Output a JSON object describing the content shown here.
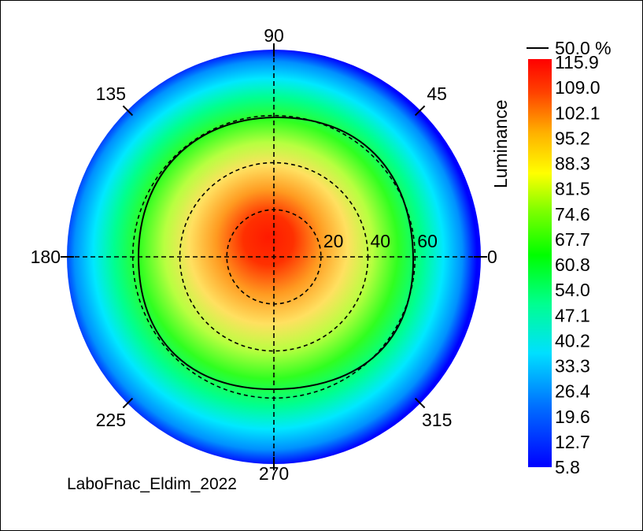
{
  "chart_data": {
    "type": "heatmap",
    "subtype": "polar conoscopic luminance map",
    "title": "LaboFnac_Eldim_2022",
    "angle_labels": [
      "0",
      "45",
      "90",
      "135",
      "180",
      "225",
      "270",
      "315"
    ],
    "angle_values": [
      0,
      45,
      90,
      135,
      180,
      225,
      270,
      315
    ],
    "radial_labels": [
      "20",
      "40",
      "60"
    ],
    "radial_values": [
      20,
      40,
      60
    ],
    "radial_max": 88,
    "grid": true,
    "grid_style": "dashed",
    "contour_label": "50.0 %",
    "contour_level": 50.0,
    "colorbar": {
      "label": "Luminance",
      "position": "right",
      "ticks": [
        "115.9",
        "109.0",
        "102.1",
        "95.2",
        "88.3",
        "81.5",
        "74.6",
        "67.7",
        "60.8",
        "54.0",
        "47.1",
        "40.2",
        "33.3",
        "26.4",
        "19.6",
        "12.7",
        "5.8"
      ],
      "min": 5.8,
      "max": 115.9
    },
    "center_value": 115.9,
    "edge_value": 5.8
  },
  "colors": {
    "ramp": [
      "#0000ff",
      "#0080ff",
      "#00ffff",
      "#00ff80",
      "#00ff00",
      "#80ff00",
      "#ffff00",
      "#ffc000",
      "#ff8000",
      "#ff0000"
    ]
  }
}
